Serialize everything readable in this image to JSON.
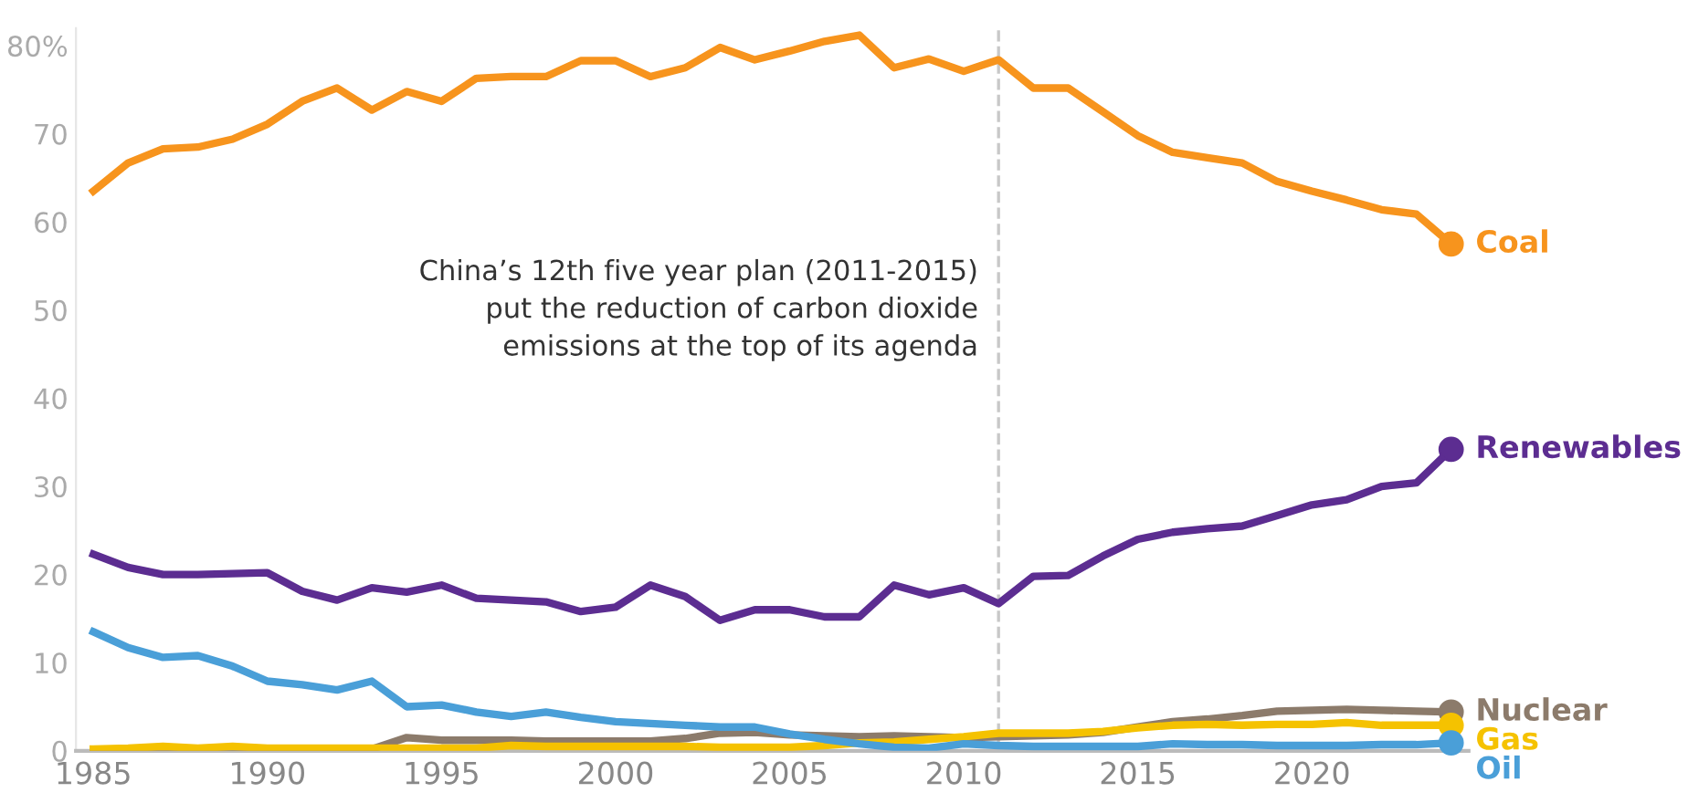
{
  "chart_data": {
    "type": "line",
    "x": [
      1985,
      1986,
      1987,
      1988,
      1989,
      1990,
      1991,
      1992,
      1993,
      1994,
      1995,
      1996,
      1997,
      1998,
      1999,
      2000,
      2001,
      2002,
      2003,
      2004,
      2005,
      2006,
      2007,
      2008,
      2009,
      2010,
      2011,
      2012,
      2013,
      2014,
      2015,
      2016,
      2017,
      2018,
      2019,
      2020,
      2021,
      2022,
      2023,
      2024
    ],
    "series": [
      {
        "name": "Coal",
        "color": "#f7941d",
        "values": [
          63.5,
          66.7,
          68.3,
          68.5,
          69.4,
          71.1,
          73.7,
          75.2,
          72.7,
          74.8,
          73.7,
          76.3,
          76.5,
          76.5,
          78.3,
          78.3,
          76.5,
          77.5,
          79.8,
          78.4,
          79.4,
          80.5,
          81.2,
          77.5,
          78.5,
          77.1,
          78.4,
          75.2,
          75.2,
          72.5,
          69.8,
          67.9,
          67.3,
          66.7,
          64.6,
          63.5,
          62.5,
          61.4,
          60.9,
          57.5
        ]
      },
      {
        "name": "Renewables",
        "color": "#5c2d91",
        "values": [
          22.3,
          20.8,
          20.0,
          20.0,
          20.1,
          20.2,
          18.1,
          17.1,
          18.5,
          18.0,
          18.8,
          17.3,
          17.1,
          16.9,
          15.8,
          16.3,
          18.8,
          17.5,
          14.8,
          16.0,
          16.0,
          15.2,
          15.2,
          18.8,
          17.7,
          18.5,
          16.7,
          19.8,
          19.9,
          22.1,
          24.0,
          24.8,
          25.2,
          25.5,
          26.7,
          27.9,
          28.5,
          30.0,
          30.4,
          34.2
        ]
      },
      {
        "name": "Nuclear",
        "color": "#8c7b6b",
        "values": [
          0,
          0,
          0,
          0,
          0,
          0,
          0,
          0,
          0.2,
          1.5,
          1.2,
          1.2,
          1.2,
          1.1,
          1.1,
          1.1,
          1.1,
          1.4,
          2.0,
          2.1,
          1.8,
          1.7,
          1.6,
          1.7,
          1.6,
          1.5,
          1.6,
          1.7,
          1.8,
          2.1,
          2.7,
          3.3,
          3.6,
          4.0,
          4.5,
          4.6,
          4.7,
          4.6,
          4.5,
          4.4
        ]
      },
      {
        "name": "Gas",
        "color": "#f5c200",
        "values": [
          0.2,
          0.3,
          0.5,
          0.3,
          0.5,
          0.3,
          0.3,
          0.3,
          0.3,
          0.3,
          0.3,
          0.3,
          0.6,
          0.5,
          0.5,
          0.5,
          0.5,
          0.5,
          0.4,
          0.4,
          0.4,
          0.6,
          0.9,
          1.0,
          1.3,
          1.6,
          2.0,
          2.0,
          2.0,
          2.2,
          2.6,
          2.9,
          3.0,
          2.9,
          3.0,
          3.0,
          3.2,
          2.9,
          2.9,
          2.9
        ]
      },
      {
        "name": "Oil",
        "color": "#4a9fd8",
        "values": [
          13.5,
          11.7,
          10.6,
          10.8,
          9.6,
          7.9,
          7.5,
          6.9,
          7.9,
          5.0,
          5.2,
          4.4,
          3.9,
          4.4,
          3.8,
          3.3,
          3.1,
          2.9,
          2.7,
          2.7,
          1.9,
          1.3,
          0.8,
          0.4,
          0.3,
          0.8,
          0.6,
          0.5,
          0.5,
          0.5,
          0.5,
          0.8,
          0.7,
          0.7,
          0.6,
          0.6,
          0.6,
          0.7,
          0.7,
          0.9
        ]
      }
    ],
    "xlim": [
      1984.5,
      2024.5
    ],
    "xticks": [
      1985,
      1990,
      1995,
      2000,
      2005,
      2010,
      2015,
      2020
    ],
    "ylim": [
      0,
      82
    ],
    "yticks": [
      0,
      10,
      20,
      30,
      40,
      50,
      60,
      70,
      {
        "value": 80,
        "label": "80%"
      }
    ],
    "ref_lines": [
      {
        "axis": "x",
        "value": 2011,
        "color": "#c8c8c8",
        "line_style": "dashed"
      }
    ],
    "annotations": [
      {
        "text": "China’s 12th five year plan (2011-2015)\nput the reduction of carbon dioxide\nemissions at the top of its agenda",
        "x": 2011,
        "y": 50
      }
    ],
    "legend": "right",
    "marker": "none",
    "line_style": "solid",
    "grid": false
  }
}
